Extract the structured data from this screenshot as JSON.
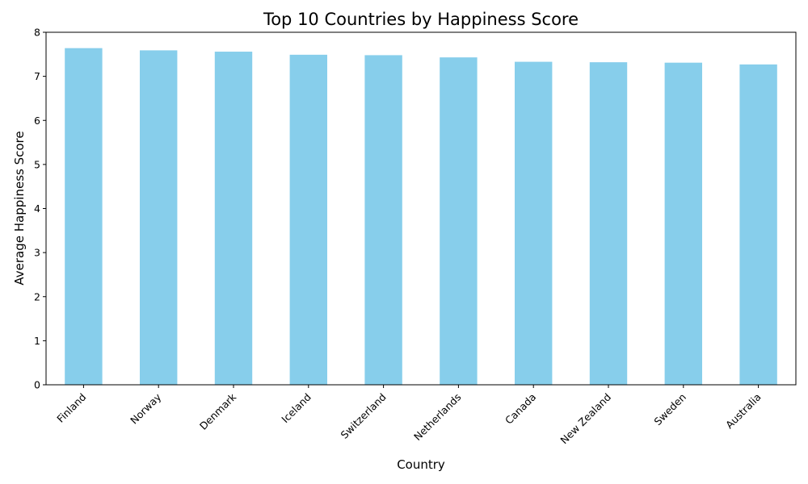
{
  "chart_data": {
    "type": "bar",
    "title": "Top 10 Countries by Happiness Score",
    "xlabel": "Country",
    "ylabel": "Average Happiness Score",
    "categories": [
      "Finland",
      "Norway",
      "Denmark",
      "Iceland",
      "Switzerland",
      "Netherlands",
      "Canada",
      "New Zealand",
      "Sweden",
      "Australia"
    ],
    "values": [
      7.64,
      7.59,
      7.56,
      7.49,
      7.48,
      7.43,
      7.33,
      7.32,
      7.31,
      7.27
    ],
    "ylim": [
      0,
      8
    ],
    "yticks": [
      0,
      1,
      2,
      3,
      4,
      5,
      6,
      7,
      8
    ],
    "xtick_rotation": 45,
    "grid": false,
    "legend": "none",
    "bar_color": "#87ceeb"
  }
}
